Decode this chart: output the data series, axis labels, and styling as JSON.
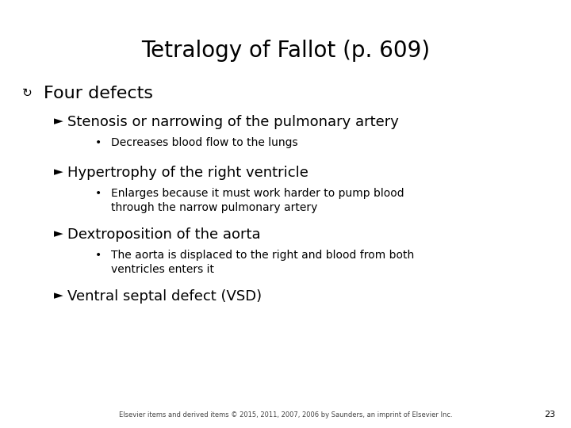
{
  "title": "Tetralogy of Fallot (p. 609)",
  "background_color": "#ffffff",
  "text_color": "#000000",
  "title_fontsize": 20,
  "footer": "Elsevier items and derived items © 2015, 2011, 2007, 2006 by Saunders, an imprint of Elsevier Inc.",
  "page_number": "23",
  "bullet1_symbol": "↲",
  "bullet1_text": "Four defects",
  "bullet1_fontsize": 16,
  "l1_fontsize": 13,
  "l2_fontsize": 10,
  "items": [
    {
      "marker": "Ø",
      "text": "Stenosis or narrowing of the pulmonary artery",
      "subitems": [
        {
          "marker": "•",
          "text": "Decreases blood flow to the lungs"
        }
      ]
    },
    {
      "marker": "Ø",
      "text": "Hypertrophy of the right ventricle",
      "subitems": [
        {
          "marker": "•",
          "text": "Enlarges because it must work harder to pump blood\nthrough the narrow pulmonary artery"
        }
      ]
    },
    {
      "marker": "Ø",
      "text": "Dextroposition of the aorta",
      "subitems": [
        {
          "marker": "•",
          "text": "The aorta is displaced to the right and blood from both\nventricles enters it"
        }
      ]
    },
    {
      "marker": "Ø",
      "text": "Ventral septal defect (VSD)",
      "subitems": []
    }
  ]
}
